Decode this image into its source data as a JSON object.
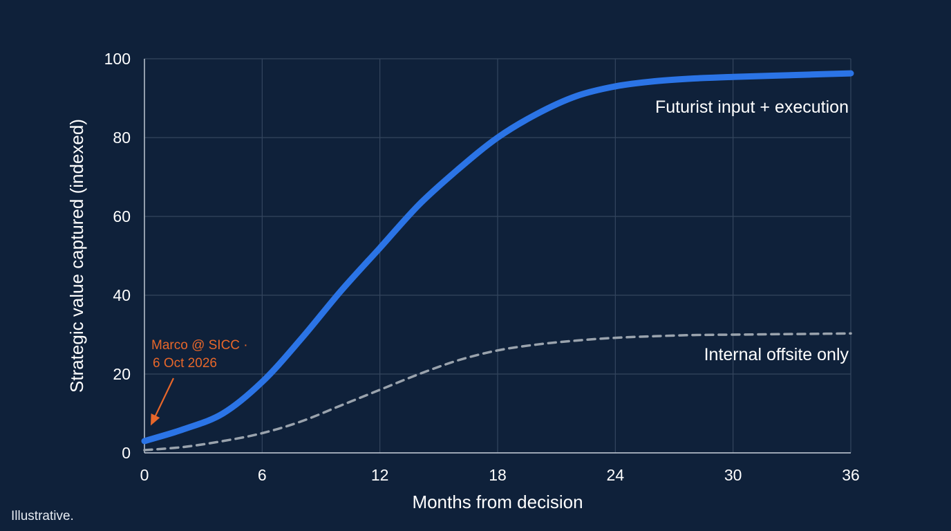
{
  "chart_data": {
    "type": "line",
    "xlabel": "Months from decision",
    "ylabel": "Strategic value captured (indexed)",
    "xlim": [
      0,
      36
    ],
    "ylim": [
      0,
      100
    ],
    "xticks": [
      0,
      6,
      12,
      18,
      24,
      30,
      36
    ],
    "yticks": [
      0,
      20,
      40,
      60,
      80,
      100
    ],
    "grid": true,
    "series": [
      {
        "name": "Futurist input + execution",
        "style": "solid",
        "color": "#2b74e6",
        "x": [
          0,
          2,
          4,
          6,
          8,
          10,
          12,
          14,
          16,
          18,
          20,
          22,
          24,
          26,
          28,
          30,
          32,
          34,
          36
        ],
        "y": [
          3,
          6,
          10,
          18,
          29,
          41,
          52,
          63,
          72,
          80,
          86,
          90.5,
          93,
          94.3,
          95,
          95.4,
          95.7,
          96,
          96.3
        ]
      },
      {
        "name": "Internal offsite only",
        "style": "dashed",
        "color": "#9aa3ad",
        "x": [
          0,
          2,
          4,
          6,
          8,
          10,
          12,
          14,
          16,
          18,
          20,
          22,
          24,
          26,
          28,
          30,
          32,
          34,
          36
        ],
        "y": [
          0.7,
          1.5,
          3,
          5,
          8,
          12,
          16,
          20,
          23.5,
          26,
          27.5,
          28.5,
          29.2,
          29.6,
          29.9,
          30,
          30.1,
          30.2,
          30.3
        ]
      }
    ],
    "annotation": {
      "lines": [
        "Marco @ SICC ·",
        "6 Oct 2026"
      ],
      "color": "#e8672a",
      "points_to": [
        0,
        5
      ]
    }
  },
  "footnote": "Illustrative."
}
